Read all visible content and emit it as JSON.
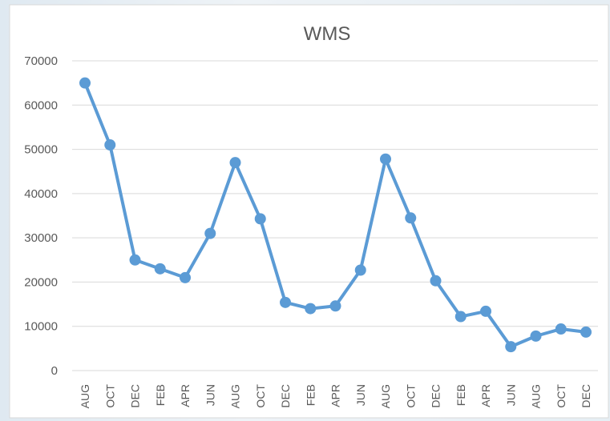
{
  "chart_data": {
    "type": "line",
    "title": "WMS",
    "categories": [
      "AUG",
      "OCT",
      "DEC",
      "FEB",
      "APR",
      "JUN",
      "AUG",
      "OCT",
      "DEC",
      "FEB",
      "APR",
      "JUN",
      "AUG",
      "OCT",
      "DEC",
      "FEB",
      "APR",
      "JUN",
      "AUG",
      "OCT",
      "DEC"
    ],
    "values": [
      65000,
      51000,
      25000,
      23000,
      21000,
      31000,
      47000,
      34300,
      15400,
      14000,
      14600,
      22700,
      47800,
      34500,
      20300,
      12200,
      13400,
      5400,
      7800,
      9400,
      8700
    ],
    "color": "#5b9bd5",
    "ylim": [
      0,
      70000
    ],
    "yticks": [
      0,
      10000,
      20000,
      30000,
      40000,
      50000,
      60000,
      70000
    ],
    "grid": true
  }
}
